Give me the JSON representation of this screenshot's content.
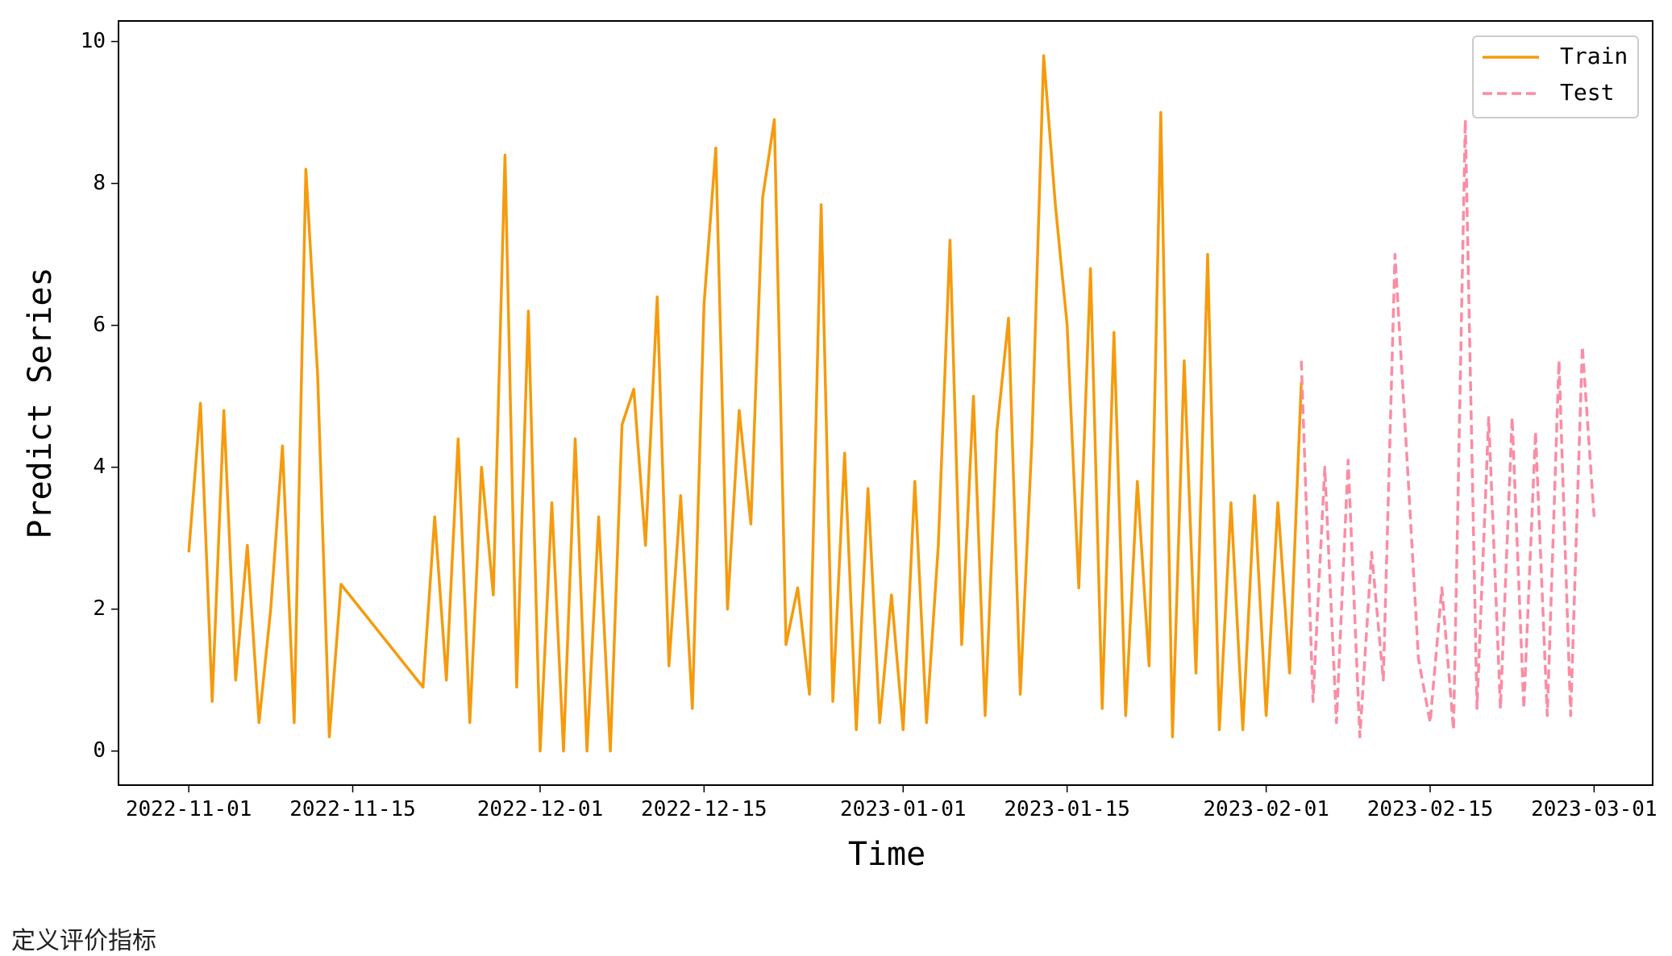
{
  "chart_data": {
    "type": "line",
    "ylabel": "Predict Series",
    "xlabel": "Time",
    "xlim": [
      "2022-10-26",
      "2023-03-06"
    ],
    "ylim": [
      -0.48,
      10.29
    ],
    "xticks": [
      "2022-11-01",
      "2022-11-15",
      "2022-12-01",
      "2022-12-15",
      "2023-01-01",
      "2023-01-15",
      "2023-02-01",
      "2023-02-15",
      "2023-03-01"
    ],
    "yticks": [
      0,
      2,
      4,
      6,
      8,
      10
    ],
    "legend": "upper right",
    "series": [
      {
        "name": "Train",
        "color": "#f59b0d",
        "dash": "solid",
        "x": [
          "2022-11-01",
          "2022-11-02",
          "2022-11-03",
          "2022-11-04",
          "2022-11-05",
          "2022-11-06",
          "2022-11-07",
          "2022-11-08",
          "2022-11-09",
          "2022-11-10",
          "2022-11-11",
          "2022-11-12",
          "2022-11-13",
          "2022-11-14",
          "2022-11-21",
          "2022-11-22",
          "2022-11-23",
          "2022-11-24",
          "2022-11-25",
          "2022-11-26",
          "2022-11-27",
          "2022-11-28",
          "2022-11-29",
          "2022-11-30",
          "2022-12-01",
          "2022-12-02",
          "2022-12-03",
          "2022-12-04",
          "2022-12-05",
          "2022-12-06",
          "2022-12-07",
          "2022-12-08",
          "2022-12-09",
          "2022-12-10",
          "2022-12-11",
          "2022-12-12",
          "2022-12-13",
          "2022-12-14",
          "2022-12-15",
          "2022-12-16",
          "2022-12-17",
          "2022-12-18",
          "2022-12-19",
          "2022-12-20",
          "2022-12-21",
          "2022-12-22",
          "2022-12-23",
          "2022-12-24",
          "2022-12-25",
          "2022-12-26",
          "2022-12-27",
          "2022-12-28",
          "2022-12-29",
          "2022-12-30",
          "2022-12-31",
          "2023-01-01",
          "2023-01-02",
          "2023-01-03",
          "2023-01-04",
          "2023-01-05",
          "2023-01-06",
          "2023-01-07",
          "2023-01-08",
          "2023-01-09",
          "2023-01-10",
          "2023-01-11",
          "2023-01-12",
          "2023-01-13",
          "2023-01-14",
          "2023-01-15",
          "2023-01-16",
          "2023-01-17",
          "2023-01-18",
          "2023-01-19",
          "2023-01-20",
          "2023-01-21",
          "2023-01-22",
          "2023-01-23",
          "2023-01-24",
          "2023-01-25",
          "2023-01-26",
          "2023-01-27",
          "2023-01-28",
          "2023-01-29",
          "2023-01-30",
          "2023-01-31",
          "2023-02-01",
          "2023-02-02",
          "2023-02-03",
          "2023-02-04"
        ],
        "values": [
          2.8,
          4.9,
          0.7,
          4.8,
          1.0,
          2.9,
          0.4,
          2.0,
          4.3,
          0.4,
          8.2,
          5.3,
          0.2,
          2.35,
          0.9,
          3.3,
          1.0,
          4.4,
          0.4,
          4.0,
          2.2,
          8.4,
          0.9,
          6.2,
          0,
          3.5,
          0,
          4.4,
          0,
          3.3,
          0,
          4.6,
          5.1,
          2.9,
          6.4,
          1.2,
          3.6,
          0.6,
          6.3,
          8.5,
          2.0,
          4.8,
          3.2,
          7.8,
          8.9,
          1.5,
          2.3,
          0.8,
          7.7,
          0.7,
          4.2,
          0.3,
          3.7,
          0.4,
          2.2,
          0.3,
          3.8,
          0.4,
          2.9,
          7.2,
          1.5,
          5.0,
          0.5,
          4.5,
          6.1,
          0.8,
          4.4,
          9.8,
          7.7,
          6.0,
          2.3,
          6.8,
          0.6,
          5.9,
          0.5,
          3.8,
          1.2,
          9.0,
          0.2,
          5.5,
          1.1,
          7.0,
          0.3,
          3.5,
          0.3,
          3.6,
          0.5,
          3.5,
          1.1,
          5.2
        ]
      },
      {
        "name": "Test",
        "color": "#fb8ca4",
        "dash": "dashed",
        "x": [
          "2023-02-04",
          "2023-02-05",
          "2023-02-06",
          "2023-02-07",
          "2023-02-08",
          "2023-02-09",
          "2023-02-10",
          "2023-02-11",
          "2023-02-12",
          "2023-02-13",
          "2023-02-14",
          "2023-02-15",
          "2023-02-16",
          "2023-02-17",
          "2023-02-18",
          "2023-02-19",
          "2023-02-20",
          "2023-02-21",
          "2023-02-22",
          "2023-02-23",
          "2023-02-24",
          "2023-02-25",
          "2023-02-26",
          "2023-02-27",
          "2023-02-28",
          "2023-03-01"
        ],
        "values": [
          5.5,
          0.7,
          4.0,
          0.4,
          4.1,
          0.2,
          2.8,
          1.0,
          7.0,
          4.2,
          1.3,
          0.4,
          2.3,
          0.3,
          8.9,
          0.6,
          4.7,
          0.6,
          4.7,
          0.6,
          4.5,
          0.5,
          5.5,
          0.5,
          5.7,
          3.3
        ]
      }
    ]
  },
  "footer_text": "定义评价指标"
}
